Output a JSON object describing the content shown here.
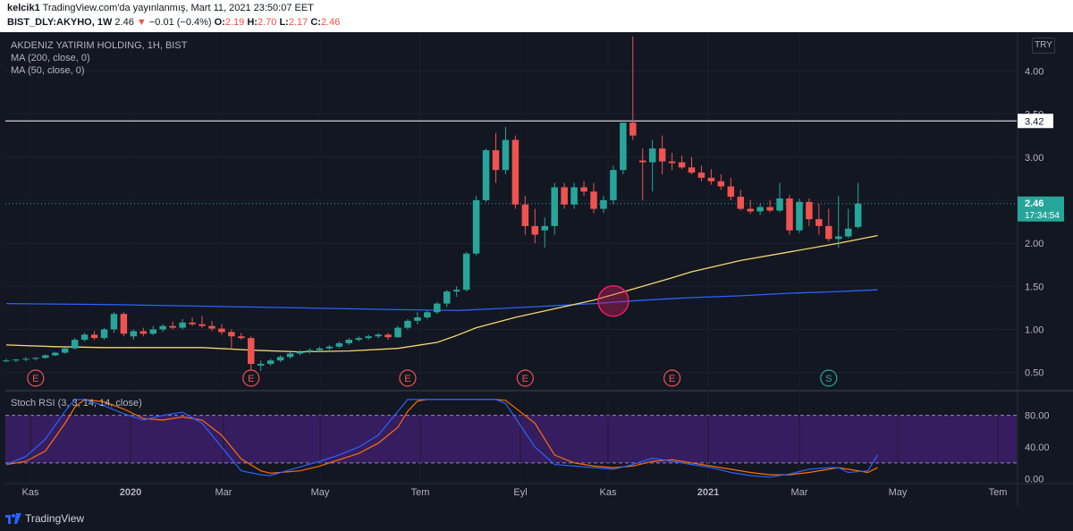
{
  "header": {
    "publisher": "kelcik1",
    "published_text": "TradingView.com'da yayınlanmış, Mart 11, 2021 23:50:07 EET",
    "symbol": "BIST_DLY:AKYHO, 1W",
    "last": "2.46",
    "change_arrow": "▼",
    "change": "−0.01 (−0.4%)",
    "o_label": "O:",
    "o": "2.19",
    "h_label": "H:",
    "h": "2.70",
    "l_label": "L:",
    "l": "2.17",
    "c_label": "C:",
    "c": "2.46"
  },
  "legend": {
    "title": "AKDENIZ YATIRIM HOLDING, 1H, BIST",
    "ma200": "MA (200, close, 0)",
    "ma50": "MA (50, close, 0)",
    "stoch": "Stoch RSI (3, 3, 14, 14, close)"
  },
  "currency": "TRY",
  "footer": {
    "brand": "TradingView"
  },
  "colors": {
    "up": "#26a69a",
    "down": "#ef5350",
    "ma200": "#2962ff",
    "ma50": "#f5d76e",
    "k_line": "#2962ff",
    "d_line": "#ff6d00",
    "band": "#3d1f6b"
  },
  "chart_data": [
    {
      "type": "candlestick",
      "title": "AKDENIZ YATIRIM HOLDING, 1H, BIST",
      "ylim": [
        0.3,
        4.45
      ],
      "y_ticks": [
        0.5,
        1.0,
        1.5,
        2.0,
        2.5,
        3.0,
        3.5,
        4.0
      ],
      "y_tick_labels": [
        "0.50",
        "1.00",
        "1.50",
        "2.00",
        "2.50",
        "3.00",
        "3.50",
        "4.00"
      ],
      "x_ticks": [
        "Kas",
        "2020",
        "Mar",
        "May",
        "Tem",
        "Eyl",
        "Kas",
        "2021",
        "Mar",
        "May",
        "Tem"
      ],
      "candles": [
        [
          0.64,
          0.66,
          0.62,
          0.64
        ],
        [
          0.64,
          0.66,
          0.62,
          0.65
        ],
        [
          0.65,
          0.68,
          0.63,
          0.66
        ],
        [
          0.66,
          0.68,
          0.64,
          0.67
        ],
        [
          0.67,
          0.71,
          0.66,
          0.7
        ],
        [
          0.7,
          0.74,
          0.69,
          0.73
        ],
        [
          0.73,
          0.79,
          0.72,
          0.78
        ],
        [
          0.78,
          0.9,
          0.77,
          0.88
        ],
        [
          0.88,
          0.96,
          0.86,
          0.94
        ],
        [
          0.94,
          0.98,
          0.88,
          0.9
        ],
        [
          0.9,
          1.02,
          0.88,
          1.0
        ],
        [
          1.0,
          1.2,
          0.96,
          1.18
        ],
        [
          1.18,
          1.2,
          0.92,
          0.95
        ],
        [
          0.92,
          1.0,
          0.88,
          0.98
        ],
        [
          0.98,
          1.02,
          0.92,
          0.95
        ],
        [
          0.95,
          1.04,
          0.93,
          1.0
        ],
        [
          1.0,
          1.06,
          0.97,
          1.04
        ],
        [
          1.04,
          1.09,
          1.0,
          1.02
        ],
        [
          1.02,
          1.12,
          1.0,
          1.08
        ],
        [
          1.08,
          1.14,
          1.04,
          1.06
        ],
        [
          1.06,
          1.16,
          1.02,
          1.04
        ],
        [
          1.04,
          1.1,
          0.98,
          1.01
        ],
        [
          1.01,
          1.06,
          0.94,
          0.97
        ],
        [
          0.97,
          1.0,
          0.78,
          0.92
        ],
        [
          0.92,
          0.96,
          0.88,
          0.9
        ],
        [
          0.9,
          0.92,
          0.5,
          0.6
        ],
        [
          0.58,
          0.64,
          0.52,
          0.6
        ],
        [
          0.6,
          0.66,
          0.58,
          0.64
        ],
        [
          0.64,
          0.7,
          0.62,
          0.68
        ],
        [
          0.68,
          0.74,
          0.66,
          0.72
        ],
        [
          0.72,
          0.76,
          0.7,
          0.74
        ],
        [
          0.74,
          0.78,
          0.72,
          0.76
        ],
        [
          0.76,
          0.8,
          0.74,
          0.78
        ],
        [
          0.78,
          0.82,
          0.76,
          0.8
        ],
        [
          0.8,
          0.86,
          0.78,
          0.84
        ],
        [
          0.84,
          0.9,
          0.82,
          0.88
        ],
        [
          0.88,
          0.92,
          0.86,
          0.9
        ],
        [
          0.9,
          0.94,
          0.88,
          0.92
        ],
        [
          0.92,
          0.96,
          0.9,
          0.94
        ],
        [
          0.94,
          0.96,
          0.88,
          0.91
        ],
        [
          0.91,
          1.04,
          0.9,
          1.02
        ],
        [
          1.02,
          1.12,
          1.0,
          1.1
        ],
        [
          1.1,
          1.2,
          1.06,
          1.14
        ],
        [
          1.14,
          1.22,
          1.12,
          1.2
        ],
        [
          1.2,
          1.32,
          1.18,
          1.3
        ],
        [
          1.3,
          1.46,
          1.26,
          1.44
        ],
        [
          1.44,
          1.5,
          1.38,
          1.46
        ],
        [
          1.46,
          1.9,
          1.44,
          1.88
        ],
        [
          1.88,
          2.55,
          1.86,
          2.5
        ],
        [
          2.5,
          3.1,
          2.48,
          3.08
        ],
        [
          3.08,
          3.28,
          2.7,
          2.85
        ],
        [
          2.85,
          3.35,
          2.8,
          3.2
        ],
        [
          3.2,
          3.25,
          2.4,
          2.45
        ],
        [
          2.45,
          2.55,
          2.1,
          2.2
        ],
        [
          2.2,
          2.4,
          2.0,
          2.1
        ],
        [
          2.15,
          2.3,
          1.95,
          2.2
        ],
        [
          2.2,
          2.7,
          2.1,
          2.65
        ],
        [
          2.65,
          2.7,
          2.4,
          2.45
        ],
        [
          2.45,
          2.7,
          2.4,
          2.65
        ],
        [
          2.65,
          2.72,
          2.55,
          2.6
        ],
        [
          2.6,
          2.7,
          2.35,
          2.4
        ],
        [
          2.4,
          2.55,
          2.35,
          2.5
        ],
        [
          2.5,
          2.9,
          2.45,
          2.85
        ],
        [
          2.85,
          3.4,
          2.8,
          3.4
        ],
        [
          3.4,
          4.4,
          3.2,
          3.25
        ],
        [
          2.96,
          3.1,
          2.5,
          2.94
        ],
        [
          2.94,
          3.2,
          2.6,
          3.1
        ],
        [
          3.1,
          3.25,
          2.8,
          2.95
        ],
        [
          2.95,
          3.05,
          2.85,
          2.93
        ],
        [
          2.94,
          3.02,
          2.86,
          2.88
        ],
        [
          2.88,
          3.0,
          2.8,
          2.82
        ],
        [
          2.82,
          2.9,
          2.72,
          2.76
        ],
        [
          2.76,
          2.86,
          2.68,
          2.72
        ],
        [
          2.72,
          2.8,
          2.62,
          2.66
        ],
        [
          2.66,
          2.76,
          2.5,
          2.54
        ],
        [
          2.54,
          2.62,
          2.38,
          2.4
        ],
        [
          2.4,
          2.5,
          2.34,
          2.37
        ],
        [
          2.37,
          2.46,
          2.33,
          2.42
        ],
        [
          2.42,
          2.5,
          2.36,
          2.38
        ],
        [
          2.38,
          2.7,
          2.36,
          2.52
        ],
        [
          2.52,
          2.56,
          2.1,
          2.15
        ],
        [
          2.15,
          2.52,
          2.12,
          2.48
        ],
        [
          2.48,
          2.52,
          2.2,
          2.28
        ],
        [
          2.28,
          2.46,
          2.1,
          2.2
        ],
        [
          2.2,
          2.4,
          2.02,
          2.05
        ],
        [
          2.05,
          2.55,
          1.95,
          2.08
        ],
        [
          2.08,
          2.4,
          2.06,
          2.17
        ],
        [
          2.19,
          2.7,
          2.17,
          2.46
        ]
      ],
      "series": [
        {
          "name": "MA (200, close, 0)",
          "values": [
            [
              0,
              1.3
            ],
            [
              10,
              1.29
            ],
            [
              20,
              1.27
            ],
            [
              30,
              1.25
            ],
            [
              40,
              1.23
            ],
            [
              46,
              1.22
            ],
            [
              50,
              1.24
            ],
            [
              55,
              1.27
            ],
            [
              60,
              1.3
            ],
            [
              65,
              1.34
            ],
            [
              70,
              1.37
            ],
            [
              75,
              1.39
            ],
            [
              80,
              1.42
            ],
            [
              85,
              1.44
            ],
            [
              89,
              1.46
            ]
          ]
        },
        {
          "name": "MA (50, close, 0)",
          "values": [
            [
              0,
              0.82
            ],
            [
              5,
              0.8
            ],
            [
              10,
              0.79
            ],
            [
              15,
              0.79
            ],
            [
              20,
              0.79
            ],
            [
              25,
              0.76
            ],
            [
              30,
              0.74
            ],
            [
              35,
              0.75
            ],
            [
              40,
              0.78
            ],
            [
              44,
              0.85
            ],
            [
              46,
              0.93
            ],
            [
              48,
              1.02
            ],
            [
              52,
              1.14
            ],
            [
              56,
              1.24
            ],
            [
              60,
              1.34
            ],
            [
              65,
              1.5
            ],
            [
              68,
              1.6
            ],
            [
              70,
              1.67
            ],
            [
              75,
              1.8
            ],
            [
              80,
              1.9
            ],
            [
              85,
              2.0
            ],
            [
              89,
              2.09
            ]
          ]
        }
      ],
      "annotations": {
        "horizontal_line": 3.42,
        "horizontal_line_label": "3.42",
        "last_price_label": "2.46",
        "countdown_label": "17:34:54",
        "highlight_circle": {
          "x_index": 62,
          "y": 1.33
        },
        "event_markers": [
          {
            "label": "E",
            "x_index": 3
          },
          {
            "label": "E",
            "x_index": 25
          },
          {
            "label": "E",
            "x_index": 41
          },
          {
            "label": "E",
            "x_index": 53
          },
          {
            "label": "E",
            "x_index": 68
          },
          {
            "label": "S",
            "x_index": 84
          }
        ]
      }
    },
    {
      "type": "line",
      "title": "Stoch RSI (3, 3, 14, 14, close)",
      "ylim": [
        -5,
        110
      ],
      "y_ticks": [
        0,
        40,
        80
      ],
      "y_tick_labels": [
        "0.00",
        "40.00",
        "80.00"
      ],
      "band": [
        20,
        80
      ],
      "series": [
        {
          "name": "K",
          "values": [
            [
              0,
              18
            ],
            [
              2,
              28
            ],
            [
              4,
              50
            ],
            [
              6,
              85
            ],
            [
              7,
              100
            ],
            [
              8,
              100
            ],
            [
              10,
              92
            ],
            [
              12,
              82
            ],
            [
              14,
              74
            ],
            [
              16,
              80
            ],
            [
              18,
              84
            ],
            [
              20,
              70
            ],
            [
              22,
              40
            ],
            [
              24,
              10
            ],
            [
              26,
              5
            ],
            [
              27,
              4
            ],
            [
              30,
              15
            ],
            [
              32,
              22
            ],
            [
              34,
              30
            ],
            [
              36,
              40
            ],
            [
              38,
              55
            ],
            [
              40,
              85
            ],
            [
              41,
              100
            ],
            [
              42,
              100
            ],
            [
              43,
              100
            ],
            [
              46,
              100
            ],
            [
              50,
              100
            ],
            [
              51,
              95
            ],
            [
              54,
              40
            ],
            [
              56,
              18
            ],
            [
              58,
              16
            ],
            [
              60,
              14
            ],
            [
              62,
              12
            ],
            [
              64,
              18
            ],
            [
              66,
              26
            ],
            [
              68,
              22
            ],
            [
              70,
              18
            ],
            [
              72,
              14
            ],
            [
              74,
              8
            ],
            [
              76,
              4
            ],
            [
              78,
              2
            ],
            [
              80,
              6
            ],
            [
              82,
              12
            ],
            [
              84,
              14
            ],
            [
              85,
              14
            ],
            [
              86,
              8
            ],
            [
              88,
              10
            ],
            [
              89,
              30
            ]
          ]
        },
        {
          "name": "D",
          "values": [
            [
              0,
              18
            ],
            [
              2,
              22
            ],
            [
              4,
              35
            ],
            [
              6,
              70
            ],
            [
              7,
              90
            ],
            [
              8,
              100
            ],
            [
              10,
              97
            ],
            [
              12,
              88
            ],
            [
              14,
              76
            ],
            [
              16,
              74
            ],
            [
              18,
              78
            ],
            [
              20,
              74
            ],
            [
              22,
              55
            ],
            [
              24,
              25
            ],
            [
              26,
              10
            ],
            [
              27,
              7
            ],
            [
              30,
              10
            ],
            [
              32,
              16
            ],
            [
              34,
              24
            ],
            [
              36,
              32
            ],
            [
              38,
              45
            ],
            [
              40,
              65
            ],
            [
              41,
              85
            ],
            [
              42,
              98
            ],
            [
              43,
              100
            ],
            [
              46,
              100
            ],
            [
              50,
              100
            ],
            [
              51,
              99
            ],
            [
              54,
              70
            ],
            [
              56,
              30
            ],
            [
              58,
              20
            ],
            [
              60,
              16
            ],
            [
              62,
              14
            ],
            [
              64,
              16
            ],
            [
              66,
              22
            ],
            [
              68,
              24
            ],
            [
              70,
              20
            ],
            [
              72,
              16
            ],
            [
              74,
              12
            ],
            [
              76,
              8
            ],
            [
              78,
              5
            ],
            [
              80,
              5
            ],
            [
              82,
              8
            ],
            [
              84,
              12
            ],
            [
              85,
              14
            ],
            [
              86,
              12
            ],
            [
              88,
              8
            ],
            [
              89,
              14
            ]
          ]
        }
      ]
    }
  ]
}
